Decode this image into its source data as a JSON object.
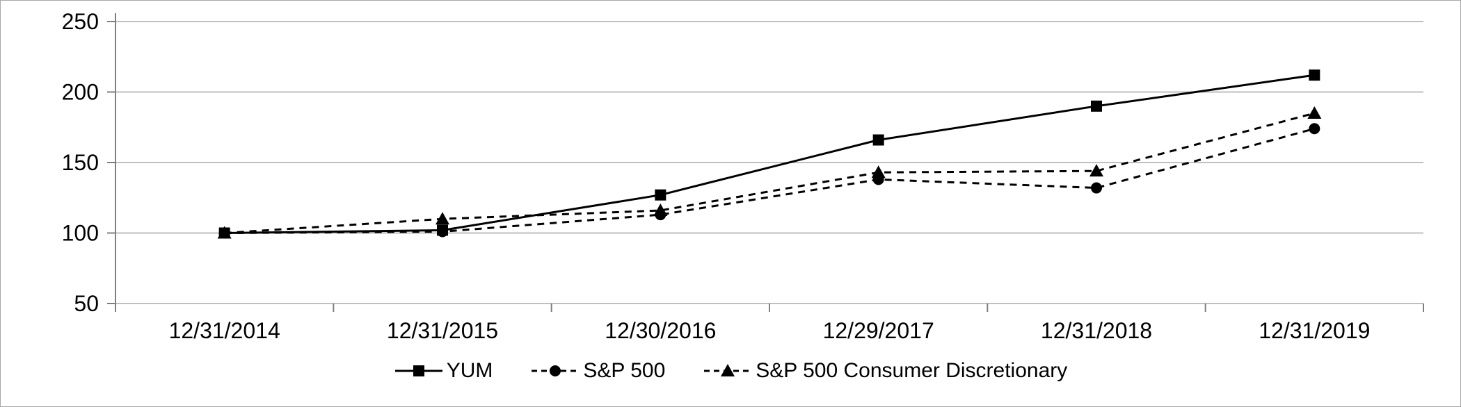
{
  "chart_data": {
    "type": "line",
    "title": "",
    "xlabel": "",
    "ylabel": "",
    "categories": [
      "12/31/2014",
      "12/31/2015",
      "12/30/2016",
      "12/29/2017",
      "12/31/2018",
      "12/31/2019"
    ],
    "series": [
      {
        "name": "YUM",
        "marker": "square",
        "line": "solid",
        "values": [
          100,
          102,
          127,
          166,
          190,
          212
        ]
      },
      {
        "name": "S&P 500",
        "marker": "circle",
        "line": "dashed",
        "values": [
          100,
          101,
          113,
          138,
          132,
          174
        ]
      },
      {
        "name": "S&P 500 Consumer Discretionary",
        "marker": "triangle",
        "line": "dashed",
        "values": [
          100,
          110,
          116,
          143,
          144,
          185
        ]
      }
    ],
    "y_ticks": [
      50,
      100,
      150,
      200,
      250
    ],
    "ylim": [
      50,
      250
    ],
    "grid": "horizontal",
    "legend_position": "bottom",
    "colors": {
      "line": "#000000",
      "grid": "#bfbfbf",
      "axis": "#7f7f7f",
      "text": "#000000",
      "background": "#ffffff",
      "border": "#a6a6a6"
    }
  }
}
